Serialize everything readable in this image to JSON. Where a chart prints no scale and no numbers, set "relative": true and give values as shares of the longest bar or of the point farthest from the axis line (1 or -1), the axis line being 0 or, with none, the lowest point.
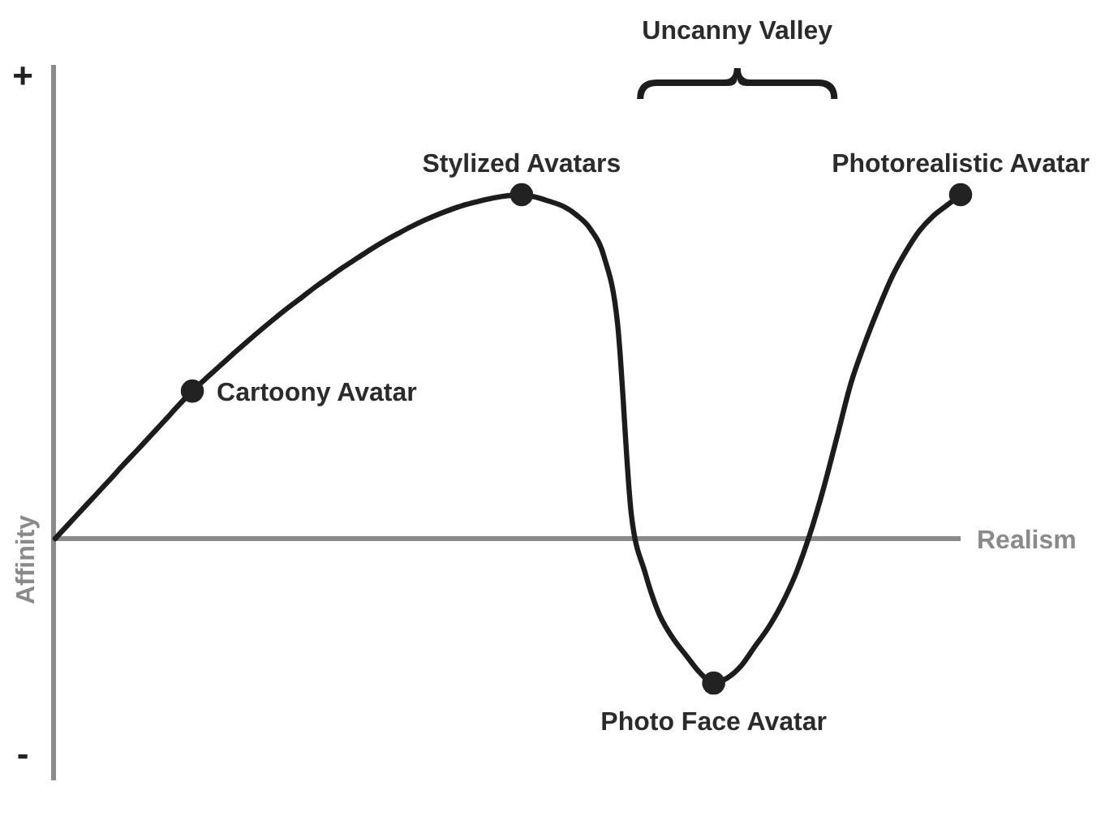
{
  "chart_data": {
    "type": "line",
    "relative": true,
    "xlabel": "Realism",
    "ylabel": "Affinity",
    "annotations": [
      "+",
      "Uncanny Valley",
      "-"
    ],
    "categories": [
      null,
      null,
      null,
      null,
      null,
      null,
      null,
      null,
      null,
      null,
      null,
      null,
      null,
      null,
      null,
      null,
      null,
      null,
      null,
      null,
      null,
      null,
      null,
      null,
      null,
      null,
      null,
      null,
      null,
      null,
      null,
      null,
      null,
      null,
      null,
      null,
      null,
      null,
      null,
      null,
      null,
      null,
      null,
      null,
      null,
      null,
      null,
      null,
      null,
      null,
      null,
      null,
      null,
      null,
      null,
      null,
      null,
      null,
      null,
      null,
      null,
      null,
      null,
      null,
      null,
      null,
      null
    ],
    "series": [
      {
        "type": "line",
        "color": "#1c1c1c",
        "values": [
          0,
          0.043,
          0.086,
          0.129,
          0.172,
          0.216,
          0.258,
          0.301,
          0.344,
          0.388,
          0.429,
          0.466,
          0.502,
          0.538,
          0.573,
          0.607,
          0.64,
          0.672,
          0.702,
          0.733,
          0.761,
          0.789,
          0.815,
          0.841,
          0.865,
          0.887,
          0.908,
          0.927,
          0.944,
          0.959,
          0.972,
          0.982,
          0.991,
          0.997,
          1,
          0.993,
          0.981,
          0.967,
          0.941,
          0.901,
          0.821,
          0.623,
          0.07,
          -0.099,
          -0.217,
          -0.288,
          -0.34,
          -0.39,
          -0.42,
          -0.405,
          -0.37,
          -0.314,
          -0.258,
          -0.188,
          -0.101,
          0.011,
          0.145,
          0.297,
          0.451,
          0.566,
          0.668,
          0.761,
          0.834,
          0.895,
          0.938,
          0.969,
          1
        ]
      },
      {
        "type": "line",
        "name": "Cartoony Avatar",
        "color": "#222222",
        "marker": "circle",
        "values": [
          null,
          null,
          null,
          null,
          null,
          null,
          null,
          null,
          null,
          null,
          0.429,
          null,
          null,
          null,
          null,
          null,
          null,
          null,
          null,
          null,
          null,
          null,
          null,
          null,
          null,
          null,
          null,
          null,
          null,
          null,
          null,
          null,
          null,
          null,
          null,
          null,
          null,
          null,
          null,
          null,
          null,
          null,
          null,
          null,
          null,
          null,
          null,
          null,
          null,
          null,
          null,
          null,
          null,
          null,
          null,
          null,
          null,
          null,
          null,
          null,
          null,
          null,
          null,
          null,
          null,
          null,
          null
        ]
      },
      {
        "type": "line",
        "name": "Stylized Avatars",
        "color": "#222222",
        "marker": "circle",
        "values": [
          null,
          null,
          null,
          null,
          null,
          null,
          null,
          null,
          null,
          null,
          null,
          null,
          null,
          null,
          null,
          null,
          null,
          null,
          null,
          null,
          null,
          null,
          null,
          null,
          null,
          null,
          null,
          null,
          null,
          null,
          null,
          null,
          null,
          null,
          1,
          null,
          null,
          null,
          null,
          null,
          null,
          null,
          null,
          null,
          null,
          null,
          null,
          null,
          null,
          null,
          null,
          null,
          null,
          null,
          null,
          null,
          null,
          null,
          null,
          null,
          null,
          null,
          null,
          null,
          null,
          null,
          null
        ]
      },
      {
        "type": "line",
        "name": "Photo Face Avatar",
        "color": "#222222",
        "marker": "circle",
        "values": [
          null,
          null,
          null,
          null,
          null,
          null,
          null,
          null,
          null,
          null,
          null,
          null,
          null,
          null,
          null,
          null,
          null,
          null,
          null,
          null,
          null,
          null,
          null,
          null,
          null,
          null,
          null,
          null,
          null,
          null,
          null,
          null,
          null,
          null,
          null,
          null,
          null,
          null,
          null,
          null,
          null,
          null,
          null,
          null,
          null,
          null,
          null,
          null,
          -0.42,
          null,
          null,
          null,
          null,
          null,
          null,
          null,
          null,
          null,
          null,
          null,
          null,
          null,
          null,
          null,
          null,
          null,
          null
        ]
      },
      {
        "type": "line",
        "name": "Photorealistic Avatar",
        "color": "#222222",
        "marker": "circle",
        "values": [
          null,
          null,
          null,
          null,
          null,
          null,
          null,
          null,
          null,
          null,
          null,
          null,
          null,
          null,
          null,
          null,
          null,
          null,
          null,
          null,
          null,
          null,
          null,
          null,
          null,
          null,
          null,
          null,
          null,
          null,
          null,
          null,
          null,
          null,
          null,
          null,
          null,
          null,
          null,
          null,
          null,
          null,
          null,
          null,
          null,
          null,
          null,
          null,
          null,
          null,
          null,
          null,
          null,
          null,
          null,
          null,
          null,
          null,
          null,
          null,
          null,
          null,
          null,
          null,
          null,
          null,
          1
        ]
      }
    ]
  }
}
